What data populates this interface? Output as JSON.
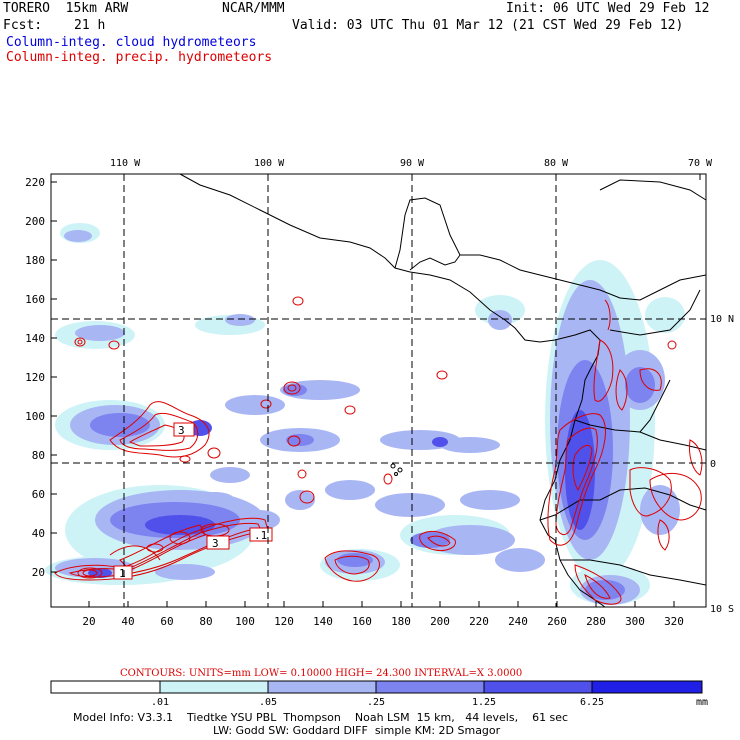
{
  "header": {
    "model": "TORERO  15km ARW",
    "org": "NCAR/MMM",
    "init": "Init: 06 UTC Wed 29 Feb 12",
    "fcst_label": "Fcst:",
    "fcst_value": "21 h",
    "valid": "Valid: 03 UTC Thu 01 Mar 12 (21 CST Wed 29 Feb 12)",
    "legend_cloud": "Column-integ. cloud hydrometeors",
    "legend_precip": "Column-integ. precip. hydrometeors"
  },
  "colors": {
    "cloud": "#0000dd",
    "precip": "#dd0000",
    "coast": "#000000"
  },
  "map": {
    "top_lon_labels": [
      "110 W",
      "100 W",
      "90 W",
      "80 W",
      "70 W"
    ],
    "right_lat_labels": [
      "10 N",
      "0",
      "10 S"
    ],
    "y_ticks": [
      "220",
      "200",
      "180",
      "160",
      "140",
      "120",
      "100",
      "80",
      "60",
      "40",
      "20"
    ],
    "x_ticks": [
      "20",
      "40",
      "60",
      "80",
      "100",
      "120",
      "140",
      "160",
      "180",
      "200",
      "220",
      "240",
      "260",
      "280",
      "300",
      "320"
    ],
    "contour_labels": [
      "3",
      "3",
      "3",
      ".1",
      "1"
    ]
  },
  "contours_note": "CONTOURS:  UNITS=mm  LOW= 0.10000       HIGH=  24.300       INTERVAL=X  3.0000",
  "colorbar": {
    "levels": [
      ".01",
      ".05",
      ".25",
      "1.25",
      "6.25"
    ],
    "unit": "mm",
    "colors": [
      "#ffffff",
      "#cdf3f7",
      "#a9b6f4",
      "#7d83ef",
      "#5050ea",
      "#1f1fe6"
    ]
  },
  "footer": {
    "line1": "Model Info: V3.3.1    Tiedtke YSU PBL  Thompson    Noah LSM  15 km,   44 levels,    61 sec",
    "line2": "LW: Godd SW: Goddard DIFF  simple KM: 2D Smagor"
  }
}
